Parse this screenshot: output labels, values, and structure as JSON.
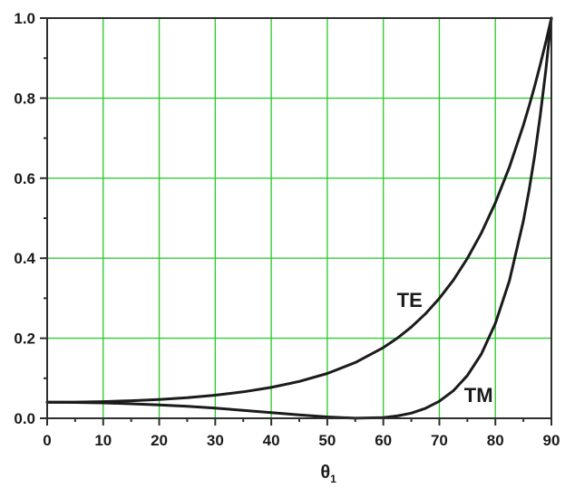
{
  "figure": {
    "background_color": "#ffffff",
    "frame_color": "#2e2e2e",
    "grid_color": "#33cc33",
    "curve_color": "#1b1b1b",
    "text_color": "#1b1b1b"
  },
  "chart_data": {
    "type": "line",
    "title": "",
    "xlabel_base": "θ",
    "xlabel_subscript": "1",
    "ylabel": "",
    "xlim": [
      0,
      90
    ],
    "ylim": [
      0.0,
      1.0
    ],
    "grid": true,
    "grid_on_major_ticks_only": true,
    "legend_position": "none (curves labeled inline)",
    "x_major_ticks": [
      0,
      10,
      20,
      30,
      40,
      50,
      60,
      70,
      80,
      90
    ],
    "x_major_tick_labels": [
      "0",
      "10",
      "20",
      "30",
      "40",
      "50",
      "60",
      "70",
      "80",
      "90"
    ],
    "x_minor_ticks": [
      5,
      15,
      25,
      35,
      45,
      55,
      65,
      75,
      85
    ],
    "y_major_ticks": [
      0.0,
      0.2,
      0.4,
      0.6,
      0.8,
      1.0
    ],
    "y_major_tick_labels": [
      "0.0",
      "0.2",
      "0.4",
      "0.6",
      "0.8",
      "1.0"
    ],
    "y_minor_ticks": [
      0.1,
      0.3,
      0.5,
      0.7,
      0.9
    ],
    "x": [
      0,
      5,
      10,
      15,
      20,
      25,
      30,
      35,
      40,
      45,
      50,
      55,
      60,
      62.5,
      65,
      67.5,
      70,
      72.5,
      75,
      77.5,
      80,
      82.5,
      85,
      86,
      87,
      88,
      89,
      90
    ],
    "series": [
      {
        "name": "TE",
        "values": [
          0.04,
          0.0404,
          0.0417,
          0.0438,
          0.0471,
          0.0516,
          0.0578,
          0.0661,
          0.0772,
          0.092,
          0.112,
          0.1393,
          0.1766,
          0.2002,
          0.2281,
          0.2609,
          0.2996,
          0.3453,
          0.3994,
          0.4632,
          0.5386,
          0.6276,
          0.7323,
          0.7793,
          0.8293,
          0.8826,
          0.9395,
          1.0
        ],
        "inline_label": "TE",
        "label_pos": {
          "x": 64.7,
          "y": 0.296
        }
      },
      {
        "name": "TM",
        "values": [
          0.04,
          0.0396,
          0.0384,
          0.0363,
          0.0334,
          0.0298,
          0.0253,
          0.02,
          0.0143,
          0.0085,
          0.0033,
          0.0002,
          0.0018,
          0.0058,
          0.013,
          0.0246,
          0.0425,
          0.0688,
          0.1068,
          0.1607,
          0.2368,
          0.3436,
          0.4932,
          0.5688,
          0.6555,
          0.7548,
          0.8689,
          1.0
        ],
        "inline_label": "TM",
        "label_pos": {
          "x": 77.0,
          "y": 0.059
        }
      }
    ]
  }
}
